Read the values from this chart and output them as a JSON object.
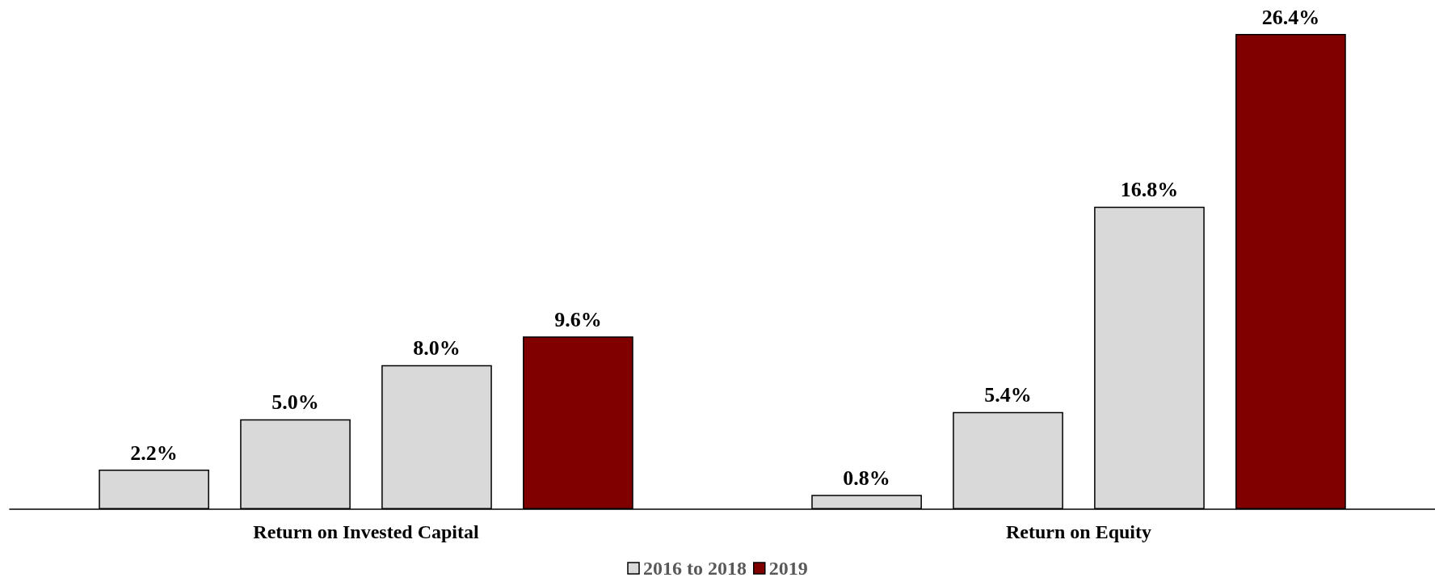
{
  "chart_data": {
    "type": "bar",
    "categories": [
      "Return on Invested Capital",
      "Return on Equity"
    ],
    "series": [
      {
        "name": "2016 to 2018",
        "color": "#d9d9d9",
        "values": [
          2.2,
          0.8
        ],
        "value_labels": [
          "2.2%",
          "0.8%"
        ]
      },
      {
        "color": "#d9d9d9",
        "values": [
          5.0,
          5.4
        ],
        "value_labels": [
          "5.0%",
          "5.4%"
        ]
      },
      {
        "color": "#d9d9d9",
        "values": [
          8.0,
          16.8
        ],
        "value_labels": [
          "8.0%",
          "16.8%"
        ]
      },
      {
        "name": "2019",
        "color": "#800000",
        "values": [
          9.6,
          26.4
        ],
        "value_labels": [
          "9.6%",
          "26.4%"
        ]
      }
    ],
    "grid": false,
    "legend": "bottom"
  }
}
